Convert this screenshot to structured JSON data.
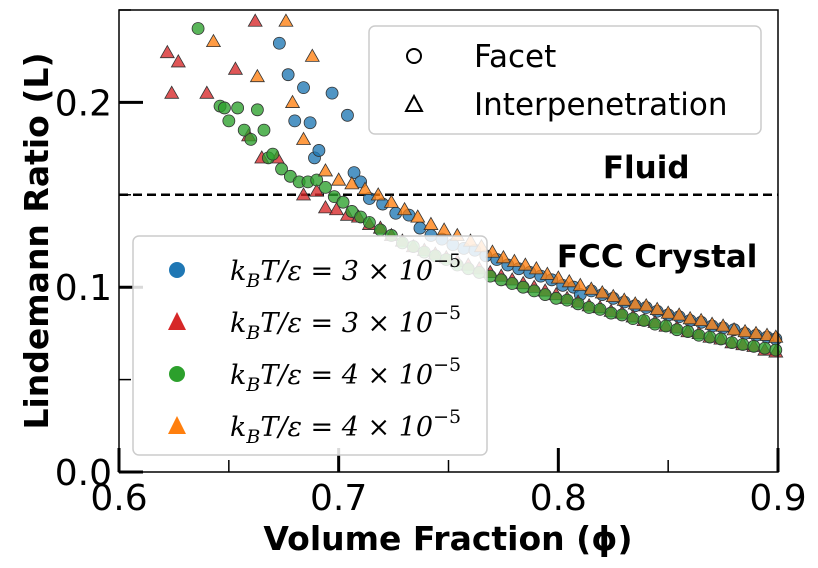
{
  "chart_data": {
    "type": "scatter",
    "xlabel": "Volume Fraction (ϕ)",
    "ylabel": "Lindemann Ratio (L)",
    "xlim": [
      0.6,
      0.9
    ],
    "ylim": [
      0.0,
      0.25
    ],
    "x_ticks": [
      "0.6",
      "0.7",
      "0.8",
      "0.9"
    ],
    "y_ticks": [
      "0.0",
      "0.1",
      "0.2"
    ],
    "y_minor_ticks": [
      0.05,
      0.15,
      0.25
    ],
    "x_minor_ticks": [
      0.65,
      0.75,
      0.85
    ],
    "reference_line": {
      "y": 0.15,
      "style": "dashed",
      "color": "#000000"
    },
    "annotations": [
      {
        "text": "Fluid",
        "x": 0.84,
        "y": 0.165
      },
      {
        "text": "FCC Crystal",
        "x": 0.845,
        "y": 0.117
      }
    ],
    "marker_legend": {
      "placement": "top-right",
      "entries": [
        {
          "marker": "circle",
          "label": "Facet"
        },
        {
          "marker": "triangle",
          "label": "Interpenetration"
        }
      ]
    },
    "series_legend": {
      "placement": "lower-left",
      "entries": [
        {
          "marker": "circle",
          "color": "#1f77b4",
          "prefix": "k",
          "sub": "B",
          "mid": "T/ε = 3 × 10",
          "exp": "−5"
        },
        {
          "marker": "triangle",
          "color": "#d62728",
          "prefix": "k",
          "sub": "B",
          "mid": "T/ε = 3 × 10",
          "exp": "−5"
        },
        {
          "marker": "circle",
          "color": "#2ca02c",
          "prefix": "k",
          "sub": "B",
          "mid": "T/ε = 4 × 10",
          "exp": "−5"
        },
        {
          "marker": "triangle",
          "color": "#ff7f0e",
          "prefix": "k",
          "sub": "B",
          "mid": "T/ε = 4 × 10",
          "exp": "−5"
        }
      ]
    },
    "series": [
      {
        "marker": "circle",
        "color": "#1f77b4",
        "points": [
          [
            0.673,
            0.232
          ],
          [
            0.677,
            0.215
          ],
          [
            0.68,
            0.19
          ],
          [
            0.684,
            0.208
          ],
          [
            0.687,
            0.189
          ],
          [
            0.689,
            0.17
          ],
          [
            0.691,
            0.174
          ],
          [
            0.697,
            0.205
          ],
          [
            0.704,
            0.193
          ],
          [
            0.707,
            0.162
          ],
          [
            0.71,
            0.157
          ],
          [
            0.714,
            0.148
          ],
          [
            0.72,
            0.145
          ],
          [
            0.726,
            0.14
          ],
          [
            0.732,
            0.139
          ],
          [
            0.737,
            0.132
          ],
          [
            0.742,
            0.128
          ],
          [
            0.747,
            0.126
          ],
          [
            0.752,
            0.123
          ],
          [
            0.757,
            0.121
          ],
          [
            0.762,
            0.12
          ],
          [
            0.767,
            0.117
          ],
          [
            0.772,
            0.115
          ],
          [
            0.777,
            0.112
          ],
          [
            0.782,
            0.11
          ],
          [
            0.787,
            0.108
          ],
          [
            0.792,
            0.106
          ],
          [
            0.797,
            0.104
          ],
          [
            0.802,
            0.101
          ],
          [
            0.807,
            0.1
          ],
          [
            0.81,
            0.096
          ],
          [
            0.815,
            0.098
          ],
          [
            0.82,
            0.096
          ],
          [
            0.825,
            0.094
          ],
          [
            0.83,
            0.092
          ],
          [
            0.835,
            0.09
          ],
          [
            0.84,
            0.089
          ],
          [
            0.845,
            0.087
          ],
          [
            0.85,
            0.085
          ],
          [
            0.855,
            0.084
          ],
          [
            0.86,
            0.082
          ],
          [
            0.865,
            0.081
          ],
          [
            0.87,
            0.079
          ],
          [
            0.875,
            0.078
          ],
          [
            0.88,
            0.077
          ],
          [
            0.885,
            0.075
          ],
          [
            0.89,
            0.074
          ],
          [
            0.895,
            0.073
          ],
          [
            0.899,
            0.072
          ]
        ]
      },
      {
        "marker": "triangle",
        "color": "#d62728",
        "points": [
          [
            0.622,
            0.227
          ],
          [
            0.624,
            0.205
          ],
          [
            0.627,
            0.222
          ],
          [
            0.64,
            0.205
          ],
          [
            0.653,
            0.218
          ],
          [
            0.659,
            0.182
          ],
          [
            0.662,
            0.244
          ],
          [
            0.665,
            0.17
          ],
          [
            0.672,
            0.17
          ],
          [
            0.684,
            0.15
          ],
          [
            0.69,
            0.152
          ],
          [
            0.694,
            0.143
          ],
          [
            0.699,
            0.142
          ],
          [
            0.704,
            0.139
          ],
          [
            0.709,
            0.138
          ],
          [
            0.714,
            0.134
          ],
          [
            0.719,
            0.132
          ],
          [
            0.724,
            0.128
          ],
          [
            0.729,
            0.125
          ],
          [
            0.734,
            0.122
          ],
          [
            0.739,
            0.12
          ],
          [
            0.744,
            0.118
          ],
          [
            0.749,
            0.116
          ],
          [
            0.754,
            0.114
          ],
          [
            0.759,
            0.112
          ],
          [
            0.764,
            0.11
          ],
          [
            0.769,
            0.108
          ],
          [
            0.774,
            0.106
          ],
          [
            0.779,
            0.104
          ],
          [
            0.784,
            0.102
          ],
          [
            0.789,
            0.1
          ],
          [
            0.794,
            0.098
          ],
          [
            0.799,
            0.096
          ],
          [
            0.804,
            0.094
          ],
          [
            0.809,
            0.092
          ],
          [
            0.814,
            0.09
          ],
          [
            0.819,
            0.089
          ],
          [
            0.824,
            0.087
          ],
          [
            0.829,
            0.086
          ],
          [
            0.834,
            0.084
          ],
          [
            0.839,
            0.082
          ],
          [
            0.844,
            0.081
          ],
          [
            0.849,
            0.079
          ],
          [
            0.854,
            0.078
          ],
          [
            0.859,
            0.076
          ],
          [
            0.864,
            0.075
          ],
          [
            0.869,
            0.073
          ],
          [
            0.874,
            0.072
          ],
          [
            0.879,
            0.07
          ],
          [
            0.884,
            0.069
          ],
          [
            0.889,
            0.068
          ],
          [
            0.894,
            0.066
          ],
          [
            0.899,
            0.065
          ]
        ]
      },
      {
        "marker": "circle",
        "color": "#2ca02c",
        "points": [
          [
            0.636,
            0.24
          ],
          [
            0.646,
            0.198
          ],
          [
            0.648,
            0.197
          ],
          [
            0.65,
            0.19
          ],
          [
            0.654,
            0.197
          ],
          [
            0.657,
            0.185
          ],
          [
            0.66,
            0.18
          ],
          [
            0.663,
            0.196
          ],
          [
            0.666,
            0.185
          ],
          [
            0.668,
            0.17
          ],
          [
            0.67,
            0.172
          ],
          [
            0.674,
            0.164
          ],
          [
            0.678,
            0.16
          ],
          [
            0.682,
            0.157
          ],
          [
            0.686,
            0.157
          ],
          [
            0.69,
            0.158
          ],
          [
            0.694,
            0.154
          ],
          [
            0.698,
            0.149
          ],
          [
            0.702,
            0.146
          ],
          [
            0.706,
            0.141
          ],
          [
            0.71,
            0.138
          ],
          [
            0.714,
            0.135
          ],
          [
            0.719,
            0.131
          ],
          [
            0.724,
            0.128
          ],
          [
            0.729,
            0.124
          ],
          [
            0.734,
            0.122
          ],
          [
            0.739,
            0.119
          ],
          [
            0.744,
            0.117
          ],
          [
            0.749,
            0.115
          ],
          [
            0.754,
            0.112
          ],
          [
            0.759,
            0.11
          ],
          [
            0.764,
            0.108
          ],
          [
            0.769,
            0.106
          ],
          [
            0.774,
            0.104
          ],
          [
            0.779,
            0.102
          ],
          [
            0.784,
            0.1
          ],
          [
            0.789,
            0.098
          ],
          [
            0.794,
            0.096
          ],
          [
            0.799,
            0.094
          ],
          [
            0.804,
            0.093
          ],
          [
            0.809,
            0.091
          ],
          [
            0.814,
            0.089
          ],
          [
            0.819,
            0.088
          ],
          [
            0.824,
            0.086
          ],
          [
            0.829,
            0.085
          ],
          [
            0.834,
            0.083
          ],
          [
            0.839,
            0.082
          ],
          [
            0.844,
            0.08
          ],
          [
            0.849,
            0.079
          ],
          [
            0.854,
            0.077
          ],
          [
            0.859,
            0.076
          ],
          [
            0.864,
            0.074
          ],
          [
            0.869,
            0.073
          ],
          [
            0.874,
            0.072
          ],
          [
            0.879,
            0.07
          ],
          [
            0.884,
            0.069
          ],
          [
            0.889,
            0.068
          ],
          [
            0.894,
            0.067
          ],
          [
            0.899,
            0.066
          ]
        ]
      },
      {
        "marker": "triangle",
        "color": "#ff7f0e",
        "points": [
          [
            0.643,
            0.233
          ],
          [
            0.663,
            0.214
          ],
          [
            0.676,
            0.244
          ],
          [
            0.679,
            0.2
          ],
          [
            0.684,
            0.18
          ],
          [
            0.688,
            0.225
          ],
          [
            0.694,
            0.163
          ],
          [
            0.7,
            0.158
          ],
          [
            0.706,
            0.156
          ],
          [
            0.712,
            0.153
          ],
          [
            0.718,
            0.15
          ],
          [
            0.724,
            0.146
          ],
          [
            0.73,
            0.142
          ],
          [
            0.736,
            0.138
          ],
          [
            0.742,
            0.134
          ],
          [
            0.748,
            0.131
          ],
          [
            0.754,
            0.128
          ],
          [
            0.76,
            0.125
          ],
          [
            0.765,
            0.122
          ],
          [
            0.77,
            0.119
          ],
          [
            0.775,
            0.116
          ],
          [
            0.78,
            0.114
          ],
          [
            0.785,
            0.112
          ],
          [
            0.79,
            0.11
          ],
          [
            0.795,
            0.107
          ],
          [
            0.8,
            0.105
          ],
          [
            0.805,
            0.103
          ],
          [
            0.81,
            0.101
          ],
          [
            0.815,
            0.099
          ],
          [
            0.82,
            0.097
          ],
          [
            0.825,
            0.095
          ],
          [
            0.83,
            0.093
          ],
          [
            0.835,
            0.091
          ],
          [
            0.84,
            0.09
          ],
          [
            0.845,
            0.088
          ],
          [
            0.85,
            0.086
          ],
          [
            0.855,
            0.085
          ],
          [
            0.86,
            0.083
          ],
          [
            0.865,
            0.082
          ],
          [
            0.87,
            0.08
          ],
          [
            0.875,
            0.079
          ],
          [
            0.88,
            0.077
          ],
          [
            0.885,
            0.076
          ],
          [
            0.89,
            0.075
          ],
          [
            0.895,
            0.074
          ],
          [
            0.899,
            0.073
          ]
        ]
      }
    ]
  }
}
